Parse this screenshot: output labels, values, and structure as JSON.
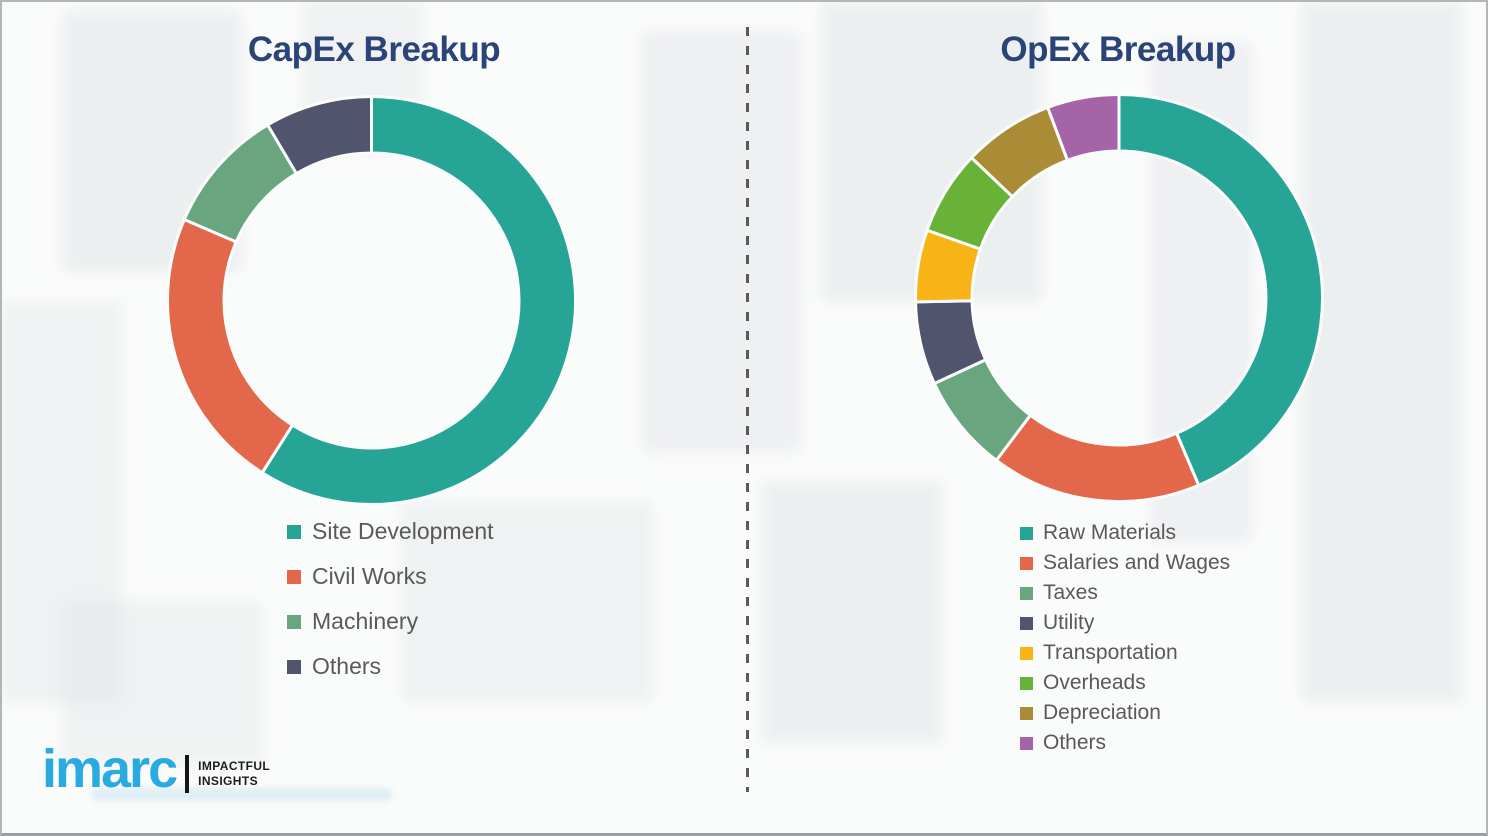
{
  "page": {
    "background_color": "#FAFBFB",
    "border_color": "#B3B5B7",
    "title_color": "#2C4377",
    "legend_text_color": "#595959",
    "divider_color": "#5A5A5A"
  },
  "logo": {
    "brand": "imarc",
    "brand_color": "#29ABE2",
    "tagline_line1": "IMPACTFUL",
    "tagline_line2": "INSIGHTS"
  },
  "chart_data": [
    {
      "type": "pie",
      "subtype": "donut",
      "title": "CapEx Breakup",
      "start_angle_deg": 0,
      "direction": "clockwise",
      "legend_position": "bottom-left",
      "slices": [
        {
          "label": "Site Development",
          "value": 59.0,
          "color": "#26A496"
        },
        {
          "label": "Civil Works",
          "value": 22.5,
          "color": "#E2674B"
        },
        {
          "label": "Machinery",
          "value": 10.0,
          "color": "#69A57F"
        },
        {
          "label": "Others",
          "value": 8.5,
          "color": "#50546D"
        }
      ]
    },
    {
      "type": "pie",
      "subtype": "donut",
      "title": "OpEx Breakup",
      "start_angle_deg": 0,
      "direction": "clockwise",
      "legend_position": "bottom-left",
      "slices": [
        {
          "label": "Raw Materials",
          "value": 43.6,
          "color": "#26A496"
        },
        {
          "label": "Salaries and Wages",
          "value": 16.7,
          "color": "#E2674B"
        },
        {
          "label": "Taxes",
          "value": 7.8,
          "color": "#69A57F"
        },
        {
          "label": "Utility",
          "value": 6.6,
          "color": "#50546D"
        },
        {
          "label": "Transportation",
          "value": 5.7,
          "color": "#F8B317"
        },
        {
          "label": "Overheads",
          "value": 6.7,
          "color": "#67B237"
        },
        {
          "label": "Depreciation",
          "value": 7.2,
          "color": "#A98C35"
        },
        {
          "label": "Others",
          "value": 5.7,
          "color": "#A563A8"
        }
      ]
    }
  ]
}
